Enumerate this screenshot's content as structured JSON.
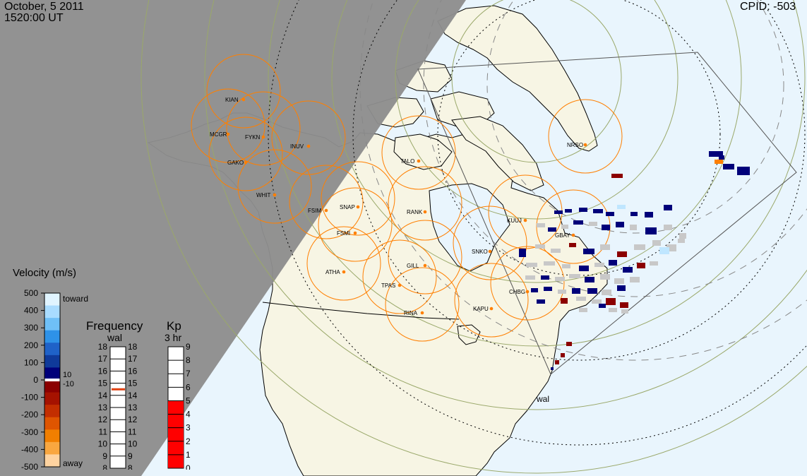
{
  "header": {
    "date": "October, 5 2011",
    "time": "1520:00 UT",
    "cpid": "CPID:  -503"
  },
  "map_marker": "wal",
  "colors": {
    "night": "#8e8e8e",
    "ocean": "#e9f5fd",
    "land": "#f7f5e4",
    "fov": "#ff7f00",
    "grid": "#9aa86a"
  },
  "stations": [
    "KIAN",
    "MCGR",
    "FYKN",
    "INUV",
    "GAKO",
    "WHIT",
    "NRSO",
    "TALO",
    "FSIM",
    "SNAP",
    "FSMI",
    "RANK",
    "KUUJ",
    "GBAY",
    "SNKO",
    "ATHA",
    "GILL",
    "TPAS",
    "CHBG",
    "KAPU",
    "RINA"
  ],
  "velocity_scale": {
    "title": "Velocity (m/s)",
    "ticks": [
      "500",
      "400",
      "300",
      "200",
      "100",
      "0",
      "-100",
      "-200",
      "-300",
      "-400",
      "-500"
    ],
    "toward": "toward",
    "away": "away",
    "pos_min": "10",
    "neg_min": "-10"
  },
  "frequency_scale": {
    "title": "Frequency",
    "subtitle": "wal",
    "ticks": [
      "18",
      "17",
      "16",
      "15",
      "14",
      "13",
      "12",
      "11",
      "10",
      "9",
      "8"
    ],
    "current_mhz": 15
  },
  "kp_scale": {
    "title": "Kp",
    "subtitle": "3 hr",
    "ticks": [
      "9",
      "8",
      "7",
      "6",
      "5",
      "4",
      "3",
      "2",
      "1",
      "0"
    ],
    "current": 5
  }
}
